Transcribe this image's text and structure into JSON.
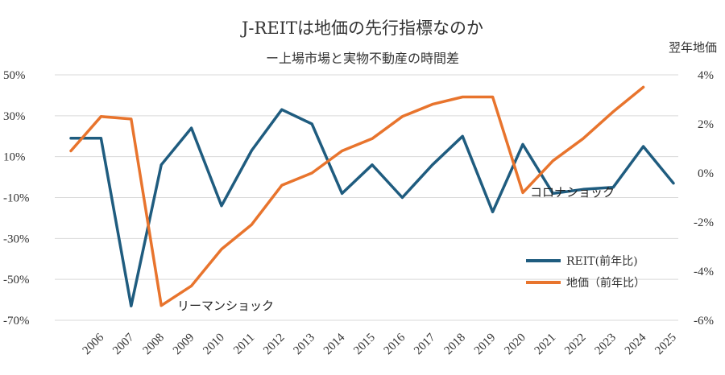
{
  "chart_data": {
    "type": "line",
    "title": "J-REITは地価の先行指標なのか",
    "subtitle": "ー上場市場と実物不動産の時間差",
    "y2label": "翌年地価",
    "categories": [
      "2006",
      "2007",
      "2008",
      "2009",
      "2010",
      "2011",
      "2012",
      "2013",
      "2014",
      "2015",
      "2016",
      "2017",
      "2018",
      "2019",
      "2020",
      "2021",
      "2022",
      "2023",
      "2024",
      "2025"
    ],
    "series": [
      {
        "name": "REIT(前年比)",
        "axis": "left",
        "color": "#1f5c7f",
        "x": [
          2005,
          2006,
          2007,
          2008,
          2009,
          2010,
          2011,
          2012,
          2013,
          2014,
          2015,
          2016,
          2017,
          2018,
          2019,
          2020,
          2021,
          2022,
          2023,
          2024,
          2025
        ],
        "values": [
          19,
          19,
          -63,
          6,
          24,
          -14,
          13,
          33,
          26,
          -8,
          6,
          -10,
          6,
          20,
          -17,
          16,
          -8,
          -6,
          -5,
          15,
          -3
        ]
      },
      {
        "name": "地価（前年比）",
        "axis": "right",
        "color": "#e8742d",
        "x": [
          2005,
          2006,
          2007,
          2008,
          2009,
          2010,
          2011,
          2012,
          2013,
          2014,
          2015,
          2016,
          2017,
          2018,
          2019,
          2020,
          2021,
          2022,
          2023,
          2024
        ],
        "values": [
          0.9,
          2.3,
          2.2,
          -5.4,
          -4.6,
          -3.1,
          -2.1,
          -0.5,
          0.0,
          0.9,
          1.4,
          2.3,
          2.8,
          3.1,
          3.1,
          -0.8,
          0.5,
          1.4,
          2.5,
          3.5
        ]
      }
    ],
    "y_left": {
      "ylim": [
        -70,
        50
      ],
      "ticks": [
        50,
        30,
        10,
        -10,
        -30,
        -50,
        -70
      ],
      "tick_labels": [
        "50%",
        "30%",
        "10%",
        "-10%",
        "-30%",
        "-50%",
        "-70%"
      ]
    },
    "y_right": {
      "ylim": [
        -6,
        4
      ],
      "ticks": [
        4,
        2,
        0,
        -2,
        -4,
        -6
      ],
      "tick_labels": [
        "4%",
        "2%",
        "0%",
        "-2%",
        "-4%",
        "-6%"
      ]
    },
    "grid": true,
    "legend_position": "bottom-right",
    "annotations": [
      {
        "text": "リーマンショック",
        "x": 2008.2,
        "y_right": -5.4
      },
      {
        "text": "コロナショック",
        "x": 2020.5,
        "y_right": -0.8
      }
    ]
  }
}
